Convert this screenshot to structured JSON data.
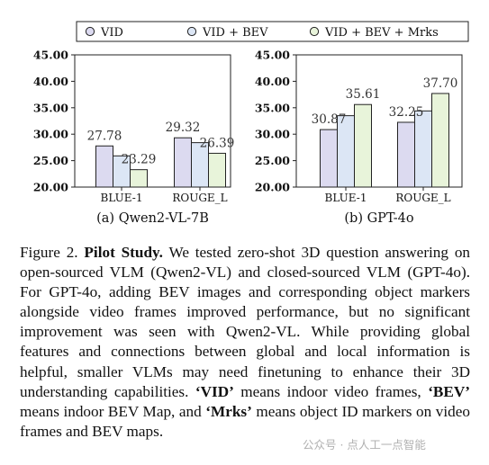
{
  "chart_data": {
    "type": "bar",
    "legend": {
      "position": "top",
      "entries": [
        {
          "name": "VID",
          "color": "#dcdaf0"
        },
        {
          "name": "VID + BEV",
          "color": "#dce6f5"
        },
        {
          "name": "VID + BEV + Mrks",
          "color": "#e8f4da"
        }
      ]
    },
    "grid": false,
    "charts": [
      {
        "subtitle": "(a) Qwen2-VL-7B",
        "categories": [
          "BLUE-1",
          "ROUGE_L"
        ],
        "ylim": [
          20,
          45
        ],
        "yticks": [
          "20.00",
          "25.00",
          "30.00",
          "35.00",
          "40.00",
          "45.00"
        ],
        "series": [
          {
            "name": "VID",
            "values": [
              27.78,
              29.32
            ]
          },
          {
            "name": "VID + BEV",
            "values": [
              25.9,
              28.4
            ]
          },
          {
            "name": "VID + BEV + Mrks",
            "values": [
              23.29,
              26.39
            ]
          }
        ],
        "data_labels": [
          {
            "series": 0,
            "category": 0,
            "text": "27.78"
          },
          {
            "series": 2,
            "category": 0,
            "text": "23.29"
          },
          {
            "series": 0,
            "category": 1,
            "text": "29.32"
          },
          {
            "series": 2,
            "category": 1,
            "text": "26.39"
          }
        ]
      },
      {
        "subtitle": "(b) GPT-4o",
        "categories": [
          "BLUE-1",
          "ROUGE_L"
        ],
        "ylim": [
          20,
          45
        ],
        "yticks": [
          "20.00",
          "25.00",
          "30.00",
          "35.00",
          "40.00",
          "45.00"
        ],
        "series": [
          {
            "name": "VID",
            "values": [
              30.87,
              32.25
            ]
          },
          {
            "name": "VID + BEV",
            "values": [
              33.5,
              34.4
            ]
          },
          {
            "name": "VID + BEV + Mrks",
            "values": [
              35.61,
              37.7
            ]
          }
        ],
        "data_labels": [
          {
            "series": 0,
            "category": 0,
            "text": "30.87"
          },
          {
            "series": 2,
            "category": 0,
            "text": "35.61"
          },
          {
            "series": 0,
            "category": 1,
            "text": "32.25"
          },
          {
            "series": 2,
            "category": 1,
            "text": "37.70"
          }
        ]
      }
    ]
  },
  "caption": {
    "figure_label": "Figure 2.",
    "bold_title": "Pilot Study.",
    "text_1": " We tested zero-shot 3D question answering on open-sourced VLM (Qwen2-VL) and closed-sourced VLM (GPT-4o). For GPT-4o, adding BEV images and corresponding object markers alongside video frames improved performance, but no significant improvement was seen with Qwen2-VL. While providing global features and connections between global and local information is helpful, smaller VLMs may need finetuning to enhance their 3D understanding capabilities. ",
    "term_vid": "‘VID’",
    "text_2": " means indoor video frames, ",
    "term_bev": "‘BEV’",
    "text_3": " means indoor BEV Map, and ",
    "term_mrks": "‘Mrks’",
    "text_4": " means object ID markers on video frames and BEV maps."
  },
  "watermark": "公众号 · 点人工一点智能"
}
